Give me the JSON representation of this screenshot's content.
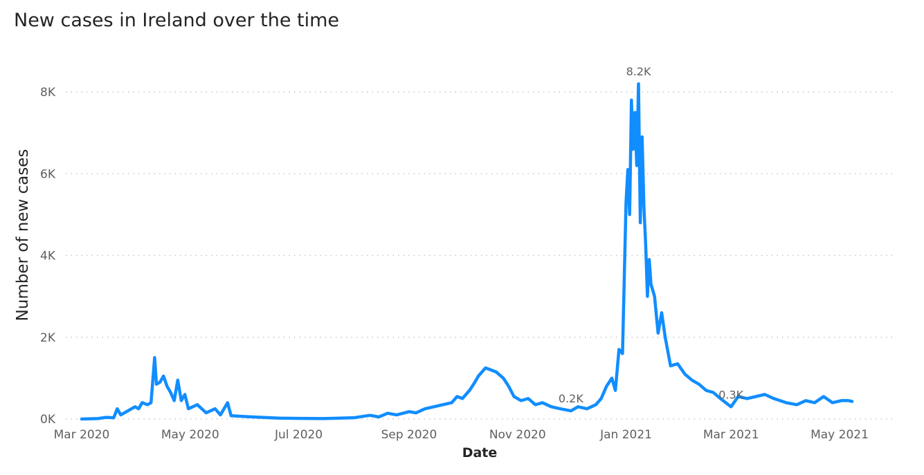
{
  "chart_data": {
    "type": "line",
    "title": "New cases in Ireland over the time",
    "xlabel": "Date",
    "ylabel": "Number of new cases",
    "ylim": [
      0,
      8000
    ],
    "grid": "horizontal dotted",
    "line_color": "#118DFF",
    "y_ticks": [
      {
        "value": 0,
        "label": "0K"
      },
      {
        "value": 2000,
        "label": "2K"
      },
      {
        "value": 4000,
        "label": "4K"
      },
      {
        "value": 6000,
        "label": "6K"
      },
      {
        "value": 8000,
        "label": "8K"
      }
    ],
    "x_ticks": [
      {
        "date": "2020-03-01",
        "label": "Mar 2020"
      },
      {
        "date": "2020-05-01",
        "label": "May 2020"
      },
      {
        "date": "2020-07-01",
        "label": "Jul 2020"
      },
      {
        "date": "2020-09-01",
        "label": "Sep 2020"
      },
      {
        "date": "2020-11-01",
        "label": "Nov 2020"
      },
      {
        "date": "2021-01-01",
        "label": "Jan 2021"
      },
      {
        "date": "2021-03-01",
        "label": "Mar 2021"
      },
      {
        "date": "2021-05-01",
        "label": "May 2021"
      }
    ],
    "data_labels": [
      {
        "date": "2021-01-08",
        "value": 8200,
        "label": "8.2K"
      },
      {
        "date": "2020-12-01",
        "value": 200,
        "label": "0.2K"
      },
      {
        "date": "2021-03-01",
        "value": 300,
        "label": "0.3K"
      }
    ],
    "series": [
      {
        "points": [
          [
            "2020-03-01",
            0
          ],
          [
            "2020-03-10",
            10
          ],
          [
            "2020-03-15",
            40
          ],
          [
            "2020-03-19",
            30
          ],
          [
            "2020-03-21",
            250
          ],
          [
            "2020-03-23",
            100
          ],
          [
            "2020-03-27",
            200
          ],
          [
            "2020-03-31",
            300
          ],
          [
            "2020-04-02",
            250
          ],
          [
            "2020-04-04",
            400
          ],
          [
            "2020-04-07",
            350
          ],
          [
            "2020-04-09",
            400
          ],
          [
            "2020-04-11",
            1500
          ],
          [
            "2020-04-12",
            850
          ],
          [
            "2020-04-14",
            900
          ],
          [
            "2020-04-16",
            1050
          ],
          [
            "2020-04-18",
            800
          ],
          [
            "2020-04-20",
            650
          ],
          [
            "2020-04-22",
            450
          ],
          [
            "2020-04-24",
            950
          ],
          [
            "2020-04-26",
            450
          ],
          [
            "2020-04-28",
            600
          ],
          [
            "2020-04-30",
            250
          ],
          [
            "2020-05-05",
            350
          ],
          [
            "2020-05-10",
            150
          ],
          [
            "2020-05-15",
            250
          ],
          [
            "2020-05-18",
            100
          ],
          [
            "2020-05-22",
            400
          ],
          [
            "2020-05-24",
            80
          ],
          [
            "2020-06-01",
            60
          ],
          [
            "2020-06-10",
            40
          ],
          [
            "2020-06-20",
            20
          ],
          [
            "2020-07-01",
            15
          ],
          [
            "2020-07-15",
            10
          ],
          [
            "2020-08-01",
            30
          ],
          [
            "2020-08-10",
            90
          ],
          [
            "2020-08-15",
            50
          ],
          [
            "2020-08-20",
            140
          ],
          [
            "2020-08-25",
            100
          ],
          [
            "2020-09-01",
            180
          ],
          [
            "2020-09-05",
            150
          ],
          [
            "2020-09-10",
            250
          ],
          [
            "2020-09-15",
            300
          ],
          [
            "2020-09-20",
            350
          ],
          [
            "2020-09-25",
            400
          ],
          [
            "2020-09-28",
            550
          ],
          [
            "2020-10-01",
            500
          ],
          [
            "2020-10-05",
            700
          ],
          [
            "2020-10-08",
            900
          ],
          [
            "2020-10-10",
            1050
          ],
          [
            "2020-10-14",
            1250
          ],
          [
            "2020-10-17",
            1200
          ],
          [
            "2020-10-20",
            1150
          ],
          [
            "2020-10-24",
            1000
          ],
          [
            "2020-10-27",
            800
          ],
          [
            "2020-10-30",
            550
          ],
          [
            "2020-11-03",
            450
          ],
          [
            "2020-11-07",
            500
          ],
          [
            "2020-11-11",
            350
          ],
          [
            "2020-11-15",
            400
          ],
          [
            "2020-11-20",
            300
          ],
          [
            "2020-11-25",
            250
          ],
          [
            "2020-12-01",
            200
          ],
          [
            "2020-12-05",
            300
          ],
          [
            "2020-12-10",
            250
          ],
          [
            "2020-12-15",
            350
          ],
          [
            "2020-12-18",
            500
          ],
          [
            "2020-12-21",
            800
          ],
          [
            "2020-12-24",
            1000
          ],
          [
            "2020-12-26",
            700
          ],
          [
            "2020-12-28",
            1700
          ],
          [
            "2020-12-30",
            1600
          ],
          [
            "2021-01-01",
            5300
          ],
          [
            "2021-01-02",
            6100
          ],
          [
            "2021-01-03",
            5000
          ],
          [
            "2021-01-04",
            7800
          ],
          [
            "2021-01-05",
            6600
          ],
          [
            "2021-01-06",
            7500
          ],
          [
            "2021-01-07",
            6200
          ],
          [
            "2021-01-08",
            8200
          ],
          [
            "2021-01-09",
            4800
          ],
          [
            "2021-01-10",
            6900
          ],
          [
            "2021-01-11",
            5200
          ],
          [
            "2021-01-12",
            4300
          ],
          [
            "2021-01-13",
            3000
          ],
          [
            "2021-01-14",
            3900
          ],
          [
            "2021-01-15",
            3300
          ],
          [
            "2021-01-17",
            3000
          ],
          [
            "2021-01-19",
            2100
          ],
          [
            "2021-01-21",
            2600
          ],
          [
            "2021-01-23",
            2000
          ],
          [
            "2021-01-26",
            1300
          ],
          [
            "2021-01-30",
            1350
          ],
          [
            "2021-02-03",
            1100
          ],
          [
            "2021-02-07",
            950
          ],
          [
            "2021-02-11",
            850
          ],
          [
            "2021-02-15",
            700
          ],
          [
            "2021-02-19",
            650
          ],
          [
            "2021-02-23",
            500
          ],
          [
            "2021-03-01",
            300
          ],
          [
            "2021-03-05",
            550
          ],
          [
            "2021-03-10",
            500
          ],
          [
            "2021-03-15",
            550
          ],
          [
            "2021-03-20",
            600
          ],
          [
            "2021-03-25",
            500
          ],
          [
            "2021-04-01",
            400
          ],
          [
            "2021-04-07",
            350
          ],
          [
            "2021-04-12",
            450
          ],
          [
            "2021-04-17",
            400
          ],
          [
            "2021-04-22",
            550
          ],
          [
            "2021-04-27",
            400
          ],
          [
            "2021-05-02",
            450
          ],
          [
            "2021-05-06",
            450
          ],
          [
            "2021-05-08",
            430
          ]
        ]
      }
    ]
  }
}
